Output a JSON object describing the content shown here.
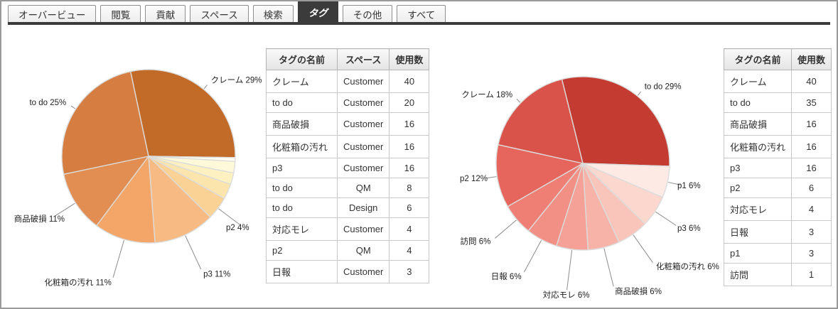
{
  "tabs": {
    "items": [
      {
        "id": "overview",
        "label": "オーバービュー",
        "active": false
      },
      {
        "id": "views",
        "label": "閲覧",
        "active": false
      },
      {
        "id": "contribute",
        "label": "貢献",
        "active": false
      },
      {
        "id": "spaces",
        "label": "スペース",
        "active": false
      },
      {
        "id": "search",
        "label": "検索",
        "active": false
      },
      {
        "id": "tags",
        "label": "タグ",
        "active": true
      },
      {
        "id": "others",
        "label": "その他",
        "active": false
      },
      {
        "id": "all",
        "label": "すべて",
        "active": false
      }
    ]
  },
  "colors": {
    "tab_active_bg": "#3B3B3B",
    "tab_underline": "#3B3B3B",
    "slice_stroke": "#DCDCDC",
    "leader_line": "#8C8C8C"
  },
  "left_table": {
    "headers": [
      "タグの名前",
      "スペース",
      "使用数"
    ],
    "rows": [
      [
        "クレーム",
        "Customer",
        "40"
      ],
      [
        "to do",
        "Customer",
        "20"
      ],
      [
        "商品破損",
        "Customer",
        "16"
      ],
      [
        "化粧箱の汚れ",
        "Customer",
        "16"
      ],
      [
        "p3",
        "Customer",
        "16"
      ],
      [
        "to do",
        "QM",
        "8"
      ],
      [
        "to do",
        "Design",
        "6"
      ],
      [
        "対応モレ",
        "Customer",
        "4"
      ],
      [
        "p2",
        "QM",
        "4"
      ],
      [
        "日報",
        "Customer",
        "3"
      ]
    ]
  },
  "right_table": {
    "headers": [
      "タグの名前",
      "使用数"
    ],
    "rows": [
      [
        "クレーム",
        "40"
      ],
      [
        "to do",
        "35"
      ],
      [
        "商品破損",
        "16"
      ],
      [
        "化粧箱の汚れ",
        "16"
      ],
      [
        "p3",
        "16"
      ],
      [
        "p2",
        "6"
      ],
      [
        "対応モレ",
        "4"
      ],
      [
        "日報",
        "3"
      ],
      [
        "p1",
        "3"
      ],
      [
        "訪問",
        "1"
      ]
    ]
  },
  "chart_data": [
    {
      "type": "pie",
      "title": "",
      "name": "tag-usage-count-pie",
      "legend_position": "none",
      "start_angle_deg": -12,
      "slices": [
        {
          "name": "クレーム",
          "value": 40,
          "pct": 29,
          "label": "クレーム 29%",
          "color": "#C26A27"
        },
        {
          "name": "訪問",
          "value": 1,
          "pct": 1,
          "label": "",
          "color": "#FFFEF0"
        },
        {
          "name": "p1",
          "value": 3,
          "pct": 2,
          "label": "",
          "color": "#FEF9D8"
        },
        {
          "name": "日報",
          "value": 3,
          "pct": 2,
          "label": "",
          "color": "#FDF1C2"
        },
        {
          "name": "対応モレ",
          "value": 4,
          "pct": 3,
          "label": "",
          "color": "#FCE5AC"
        },
        {
          "name": "p2",
          "value": 6,
          "pct": 4,
          "label": "p2 4%",
          "color": "#FBD295"
        },
        {
          "name": "p3",
          "value": 16,
          "pct": 11,
          "label": "p3 11%",
          "color": "#F7BA82"
        },
        {
          "name": "化粧箱の汚れ",
          "value": 16,
          "pct": 11,
          "label": "化粧箱の汚れ 11%",
          "color": "#F3A668"
        },
        {
          "name": "商品破損",
          "value": 16,
          "pct": 11,
          "label": "商品破損 11%",
          "color": "#E28E52"
        },
        {
          "name": "to do",
          "value": 35,
          "pct": 25,
          "label": "to do 25%",
          "color": "#D67E42"
        }
      ]
    },
    {
      "type": "pie",
      "title": "",
      "name": "tag-share-pie",
      "legend_position": "none",
      "start_angle_deg": -14,
      "slices": [
        {
          "name": "to do",
          "value": 5,
          "pct": 29,
          "label": "to do 29%",
          "color": "#C33B31"
        },
        {
          "name": "p1",
          "value": 1,
          "pct": 6,
          "label": "p1 6%",
          "color": "#FDEAE4"
        },
        {
          "name": "p3",
          "value": 1,
          "pct": 6,
          "label": "p3 6%",
          "color": "#FBD7CE"
        },
        {
          "name": "化粧箱の汚れ",
          "value": 1,
          "pct": 6,
          "label": "化粧箱の汚れ 6%",
          "color": "#F9C5BB"
        },
        {
          "name": "商品破損",
          "value": 1,
          "pct": 6,
          "label": "商品破損 6%",
          "color": "#F7B3A8"
        },
        {
          "name": "対応モレ",
          "value": 1,
          "pct": 6,
          "label": "対応モレ 6%",
          "color": "#F5A197"
        },
        {
          "name": "日報",
          "value": 1,
          "pct": 6,
          "label": "日報 6%",
          "color": "#F29085"
        },
        {
          "name": "訪問",
          "value": 1,
          "pct": 6,
          "label": "訪問 6%",
          "color": "#EF7F74"
        },
        {
          "name": "p2",
          "value": 2,
          "pct": 12,
          "label": "p2 12%",
          "color": "#E6655C"
        },
        {
          "name": "クレーム",
          "value": 3,
          "pct": 18,
          "label": "クレーム 18%",
          "color": "#D9534A"
        }
      ]
    }
  ]
}
